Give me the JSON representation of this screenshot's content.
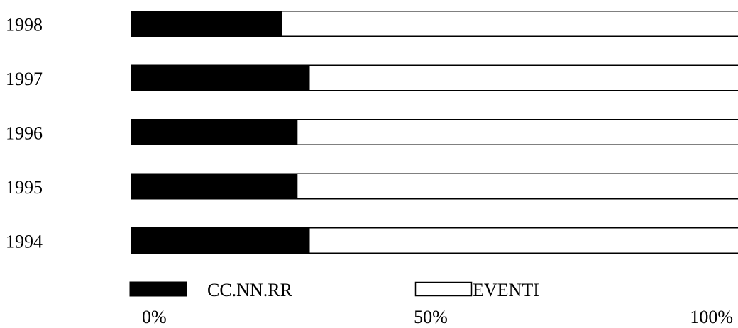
{
  "chart_data": {
    "type": "bar",
    "orientation": "horizontal",
    "stacked": true,
    "normalized_percent": true,
    "categories": [
      "1998",
      "1997",
      "1996",
      "1995",
      "1994"
    ],
    "series": [
      {
        "name": "CC.NN.RR",
        "values": [
          25,
          29.5,
          27.5,
          27.5,
          29.5
        ],
        "color": "#000000"
      },
      {
        "name": "EVENTI",
        "values": [
          75,
          70.5,
          72.5,
          72.5,
          70.5
        ],
        "color": "#ffffff"
      }
    ],
    "xlim": [
      0,
      100
    ],
    "x_ticks": [
      "0%",
      "50%",
      "100%"
    ],
    "legend_position": "bottom",
    "grid": false
  }
}
